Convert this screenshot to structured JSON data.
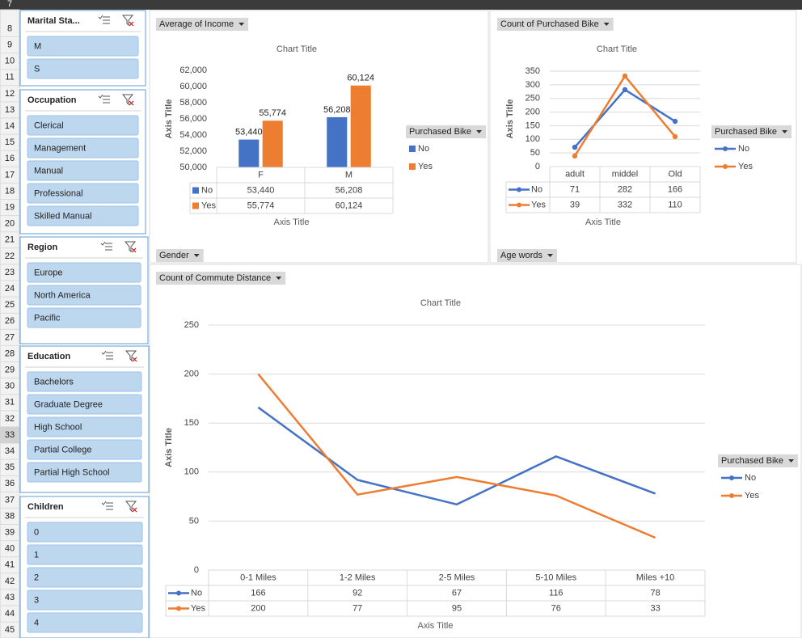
{
  "row_numbers": [
    7,
    8,
    9,
    10,
    11,
    12,
    13,
    14,
    15,
    16,
    17,
    18,
    19,
    20,
    21,
    22,
    23,
    24,
    25,
    26,
    27,
    28,
    29,
    30,
    31,
    32,
    33,
    34,
    35,
    36,
    37,
    38,
    39,
    40,
    41,
    42,
    43,
    44,
    45
  ],
  "slicers": [
    {
      "title": "Marital Sta...",
      "items": [
        "M",
        "S"
      ]
    },
    {
      "title": "Occupation",
      "items": [
        "Clerical",
        "Management",
        "Manual",
        "Professional",
        "Skilled Manual"
      ]
    },
    {
      "title": "Region",
      "items": [
        "Europe",
        "North America",
        "Pacific"
      ]
    },
    {
      "title": "Education",
      "items": [
        "Bachelors",
        "Graduate Degree",
        "High School",
        "Partial College",
        "Partial High School"
      ]
    },
    {
      "title": "Children",
      "items": [
        "0",
        "1",
        "2",
        "3",
        "4"
      ]
    }
  ],
  "chart_data": [
    {
      "type": "bar",
      "field_label": "Average of Income",
      "title": "Chart Title",
      "y_axis_title": "Axis Title",
      "x_axis_title": "Axis Title",
      "legend_title": "Purchased Bike",
      "filter_button": "Gender",
      "grid": false,
      "data_labels": true,
      "categories": [
        "F",
        "M"
      ],
      "series": [
        {
          "name": "No",
          "color": "#4472c4",
          "values": [
            53440,
            56208
          ],
          "value_labels": [
            "53,440",
            "56,208"
          ]
        },
        {
          "name": "Yes",
          "color": "#ed7d31",
          "values": [
            55774,
            60124
          ],
          "value_labels": [
            "55,774",
            "60,124"
          ]
        }
      ],
      "ylim": [
        50000,
        62000
      ],
      "yticks": [
        {
          "value": 50000,
          "label": "50,000"
        },
        {
          "value": 52000,
          "label": "52,000"
        },
        {
          "value": 54000,
          "label": "54,000"
        },
        {
          "value": 56000,
          "label": "56,000"
        },
        {
          "value": 58000,
          "label": "58,000"
        },
        {
          "value": 60000,
          "label": "60,000"
        },
        {
          "value": 62000,
          "label": "62,000"
        }
      ]
    },
    {
      "type": "line",
      "field_label": "Count of Purchased Bike",
      "title": "Chart Title",
      "y_axis_title": "Axis Title",
      "x_axis_title": "Axis Title",
      "legend_title": "Purchased Bike",
      "filter_button": "Age words",
      "grid": true,
      "markers": true,
      "categories": [
        "adult",
        "middel",
        "Old"
      ],
      "series": [
        {
          "name": "No",
          "color": "#4472c4",
          "values": [
            71,
            282,
            166
          ]
        },
        {
          "name": "Yes",
          "color": "#ed7d31",
          "values": [
            39,
            332,
            110
          ]
        }
      ],
      "ylim": [
        0,
        350
      ],
      "yticks": [
        0,
        50,
        100,
        150,
        200,
        250,
        300,
        350
      ]
    },
    {
      "type": "line",
      "field_label": "Count of Commute Distance",
      "title": "Chart Title",
      "y_axis_title": "Axis Title",
      "x_axis_title": "Axis Title",
      "legend_title": "Purchased Bike",
      "grid": true,
      "markers": false,
      "categories": [
        "0-1 Miles",
        "1-2 Miles",
        "2-5 Miles",
        "5-10 Miles",
        "Miles +10"
      ],
      "series": [
        {
          "name": "No",
          "color": "#4472c4",
          "values": [
            166,
            92,
            67,
            116,
            78
          ]
        },
        {
          "name": "Yes",
          "color": "#ed7d31",
          "values": [
            200,
            77,
            95,
            76,
            33
          ]
        }
      ],
      "ylim": [
        0,
        250
      ],
      "yticks": [
        0,
        50,
        100,
        150,
        200,
        250
      ]
    }
  ]
}
